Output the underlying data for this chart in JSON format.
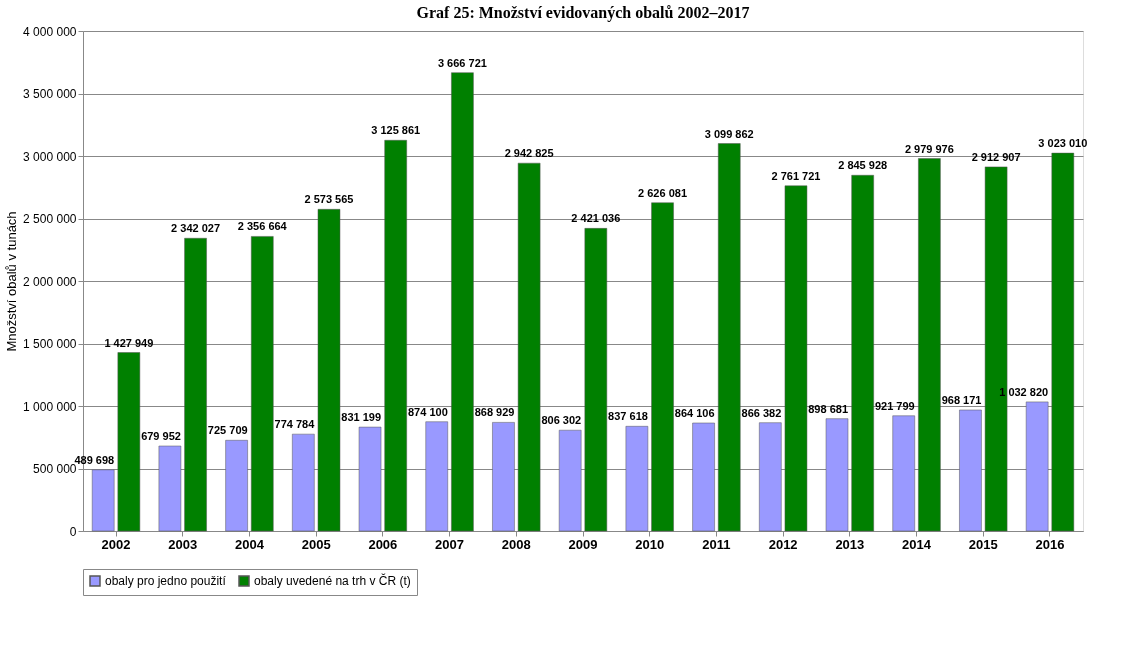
{
  "chart_data": {
    "type": "bar",
    "title": "Graf 25: Množství evidovaných obalů 2002–2017",
    "ylabel": "Množství obalů v tunách",
    "categories": [
      "2002",
      "2003",
      "2004",
      "2005",
      "2006",
      "2007",
      "2008",
      "2009",
      "2010",
      "2011",
      "2012",
      "2013",
      "2014",
      "2015",
      "2016"
    ],
    "series": [
      {
        "name": "obaly pro jedno použití",
        "color": "#9999ff",
        "values": [
          489698,
          679952,
          725709,
          774784,
          831199,
          874100,
          868929,
          806302,
          837618,
          864106,
          866382,
          898681,
          921799,
          968171,
          1032820
        ]
      },
      {
        "name": "obaly uvedené na trh v ČR (t)",
        "color": "#008000",
        "values": [
          1427949,
          2342027,
          2356664,
          2573565,
          3125861,
          3666721,
          2942825,
          2421036,
          2626081,
          3099862,
          2761721,
          2845928,
          2979976,
          2912907,
          3023010
        ]
      }
    ],
    "data_labels": true,
    "ylim": [
      0,
      4000000
    ],
    "yticks": [
      0,
      {
        "value": 500000,
        "label": "500 000"
      },
      {
        "value": 1000000,
        "label": "1 000 000"
      },
      {
        "value": 1500000,
        "label": "1 500 000"
      },
      {
        "value": 2000000,
        "label": "2 000 000"
      },
      {
        "value": 2500000,
        "label": "2 500 000"
      },
      {
        "value": 3000000,
        "label": "3 000 000"
      },
      {
        "value": 3500000,
        "label": "3 500 000"
      },
      {
        "value": 4000000,
        "label": "4 000 000"
      }
    ],
    "grid": "y",
    "legend": "bottom"
  }
}
